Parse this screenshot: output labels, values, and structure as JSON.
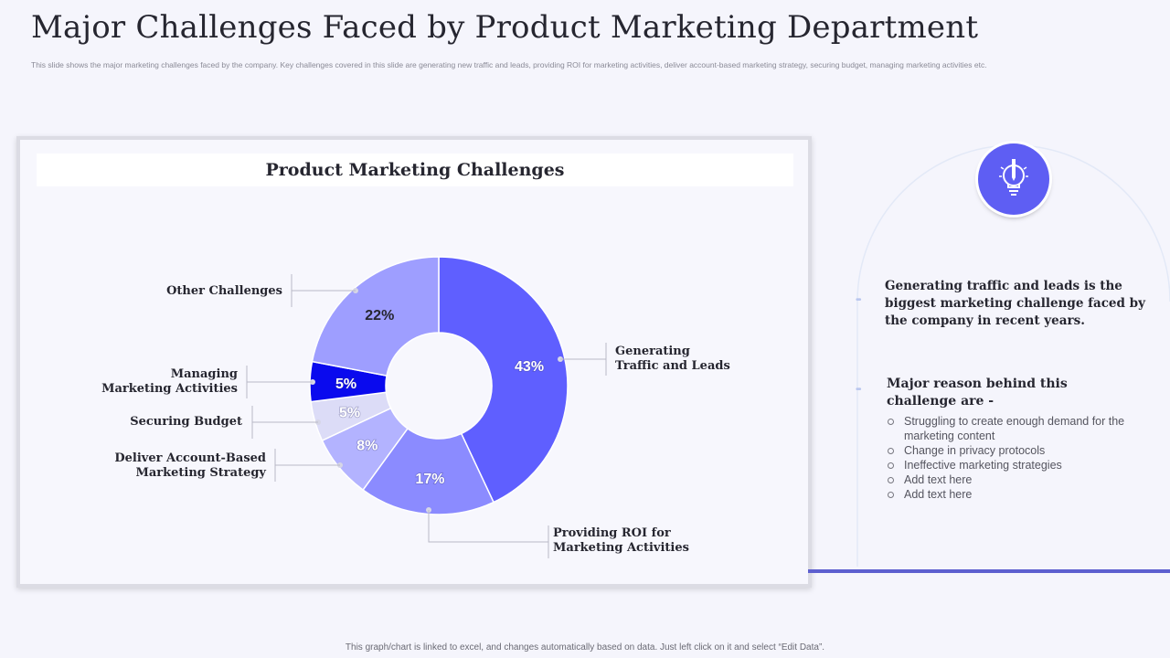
{
  "slide": {
    "title": "Major Challenges Faced by Product Marketing Department",
    "subtitle": "This slide shows the major marketing challenges faced by the company. Key challenges covered in this slide are generating new traffic and leads, providing ROI for marketing activities, deliver account-based marketing strategy, securing budget, managing marketing activities etc.",
    "footer": "This graph/chart is linked to excel, and changes automatically based on data. Just left click on it and select “Edit Data”."
  },
  "chart_data": {
    "type": "pie",
    "variant": "donut",
    "title": "Product Marketing Challenges",
    "legend": "none",
    "slices": [
      {
        "label": "Generating Traffic and Leads",
        "label_lines": [
          "Generating",
          "Traffic and Leads"
        ],
        "value": 43,
        "display": "43%",
        "color": "#5f5fff"
      },
      {
        "label": "Providing ROI for Marketing Activities",
        "label_lines": [
          "Providing ROI for",
          "Marketing Activities"
        ],
        "value": 17,
        "display": "17%",
        "color": "#8b8bff"
      },
      {
        "label": "Deliver Account-Based Marketing Strategy",
        "label_lines": [
          "Deliver Account-Based",
          "Marketing Strategy"
        ],
        "value": 8,
        "display": "8%",
        "color": "#b3b3ff"
      },
      {
        "label": "Securing Budget",
        "label_lines": [
          "Securing Budget"
        ],
        "value": 5,
        "display": "5%",
        "color": "#dcdcf7"
      },
      {
        "label": "Managing Marketing Activities",
        "label_lines": [
          "Managing",
          "Marketing Activities"
        ],
        "value": 5,
        "display": "5%",
        "color": "#0a0aee"
      },
      {
        "label": "Other Challenges",
        "label_lines": [
          "Other Challenges"
        ],
        "value": 22,
        "display": "22%",
        "color": "#9e9eff"
      }
    ]
  },
  "side": {
    "icon": "lightbulb-pencil-icon",
    "insight": "Generating traffic and leads is the biggest marketing challenge faced by the company in recent years.",
    "reason_heading": "Major reason behind this challenge are -",
    "reasons": [
      "Struggling to create enough demand for the marketing content",
      "Change in privacy protocols",
      "Ineffective marketing strategies",
      "Add text here",
      "Add text here"
    ],
    "accent_color": "#5e5ef3"
  }
}
